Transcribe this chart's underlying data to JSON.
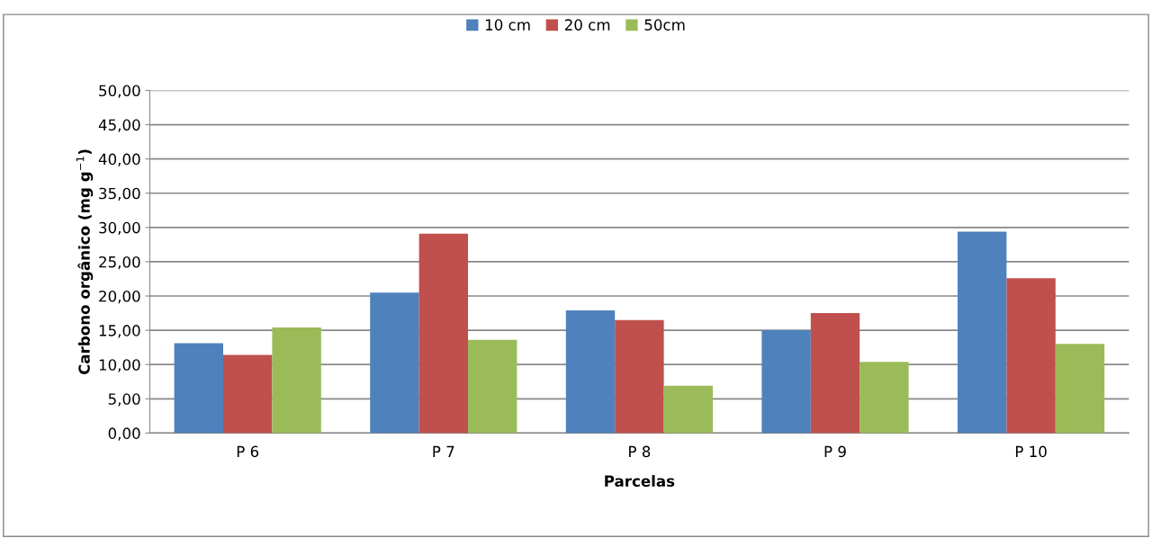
{
  "chart_data": {
    "type": "bar",
    "xlabel": "Parcelas",
    "ylabel": "Carbono orgânico (mg g$^{−1}$)",
    "categories": [
      "P 6",
      "P 7",
      "P 8",
      "P 9",
      "P 10"
    ],
    "series": [
      {
        "name": "10 cm",
        "color": "#4f81bd",
        "values": [
          13.1,
          20.5,
          17.9,
          15.0,
          29.4
        ]
      },
      {
        "name": "20 cm",
        "color": "#c0504d",
        "values": [
          11.4,
          29.1,
          16.5,
          17.5,
          22.6
        ]
      },
      {
        "name": "50cm",
        "color": "#9bbb59",
        "values": [
          15.4,
          13.6,
          6.9,
          10.4,
          13.0
        ]
      }
    ],
    "ylim": [
      0,
      50
    ],
    "yticks": [
      {
        "value": 0,
        "label": "0,00"
      },
      {
        "value": 5,
        "label": "5,00"
      },
      {
        "value": 10,
        "label": "10,00"
      },
      {
        "value": 15,
        "label": "15,00"
      },
      {
        "value": 20,
        "label": "20,00"
      },
      {
        "value": 25,
        "label": "25,00"
      },
      {
        "value": 30,
        "label": "30,00"
      },
      {
        "value": 35,
        "label": "35,00"
      },
      {
        "value": 40,
        "label": "40,00"
      },
      {
        "value": 45,
        "label": "45,00"
      },
      {
        "value": 50,
        "label": "50,00"
      }
    ],
    "grid": "y",
    "legend": "top"
  }
}
